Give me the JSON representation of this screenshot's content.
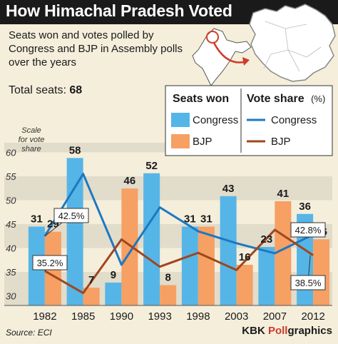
{
  "header": {
    "title": "How Himachal Pradesh Voted",
    "subtitle": "Seats won and votes polled by Congress and BJP in Assembly polls over the years",
    "total_label": "Total seats:",
    "total_value": "68"
  },
  "footer": {
    "source": "Source: ECI",
    "credit_prefix": "KBK ",
    "credit_accent": "Poll",
    "credit_suffix": "graphics"
  },
  "colors": {
    "header_bg": "#1a1a1a",
    "background": "#f4eedb",
    "congress_bar": "#56b5e7",
    "bjp_bar": "#f6a064",
    "congress_line": "#1d78c2",
    "bjp_line": "#a0461d",
    "credit_accent": "#cc3a2a"
  },
  "chart_data": {
    "type": "bar",
    "categories": [
      "1982",
      "1985",
      "1990",
      "1993",
      "1998",
      "2003",
      "2007",
      "2012"
    ],
    "series": [
      {
        "name": "Congress",
        "kind": "bar",
        "axis": "seats",
        "values": [
          31,
          58,
          9,
          52,
          31,
          43,
          23,
          36
        ]
      },
      {
        "name": "BJP",
        "kind": "bar",
        "axis": "seats",
        "values": [
          29,
          7,
          46,
          8,
          31,
          16,
          41,
          26
        ]
      },
      {
        "name": "Congress",
        "kind": "line",
        "axis": "vote_share",
        "values": [
          42.5,
          55.5,
          36.5,
          48.5,
          43.5,
          41.0,
          38.9,
          42.8
        ]
      },
      {
        "name": "BJP",
        "kind": "line",
        "axis": "vote_share",
        "values": [
          35.2,
          30.6,
          41.8,
          36.1,
          39.0,
          35.4,
          43.8,
          38.5
        ]
      }
    ],
    "vote_share_axis": {
      "label": "Scale for vote share",
      "ticks": [
        30,
        35,
        40,
        45,
        50,
        55,
        60
      ],
      "range": [
        28,
        62
      ]
    },
    "seats_range": [
      0,
      64
    ],
    "legend": {
      "seats_title": "Seats won",
      "vote_title": "Vote share",
      "vote_unit": "(%)",
      "items": [
        "Congress",
        "BJP",
        "Congress",
        "BJP"
      ],
      "placement": "top-right"
    },
    "annotations": [
      {
        "year": "1982",
        "series": "Congress",
        "text": "42.5%"
      },
      {
        "year": "1982",
        "series": "BJP",
        "text": "35.2%"
      },
      {
        "year": "2012",
        "series": "Congress",
        "text": "42.8%"
      },
      {
        "year": "2012",
        "series": "BJP",
        "text": "38.5%"
      }
    ]
  }
}
